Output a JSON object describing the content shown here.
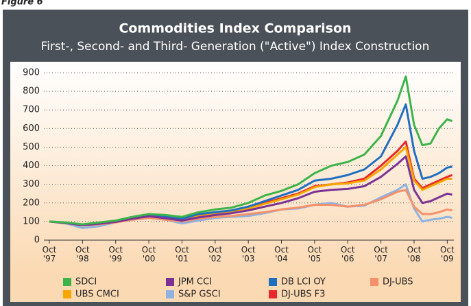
{
  "figure_label": "Figure 6",
  "chart_data": {
    "type": "line",
    "title": "Commodities Index Comparison",
    "subtitle": "First-, Second- and Third- Generation (\"Active\") Index Construction",
    "x": [
      1997.75,
      1998.25,
      1998.75,
      1999.25,
      1999.75,
      2000.25,
      2000.75,
      2001.25,
      2001.75,
      2002.25,
      2002.75,
      2003.25,
      2003.75,
      2004.25,
      2004.75,
      2005.25,
      2005.75,
      2006.25,
      2006.75,
      2007.25,
      2007.75,
      2008.25,
      2008.5,
      2008.75,
      2009.0,
      2009.25,
      2009.5,
      2009.75,
      2009.9
    ],
    "xlim": [
      1997.75,
      2009.95
    ],
    "xticks": [
      {
        "value": 1997.75,
        "label": "Oct '97"
      },
      {
        "value": 1998.75,
        "label": "Oct '98"
      },
      {
        "value": 1999.75,
        "label": "Oct '99"
      },
      {
        "value": 2000.75,
        "label": "Oct '00"
      },
      {
        "value": 2001.75,
        "label": "Oct '01"
      },
      {
        "value": 2002.75,
        "label": "Oct '02"
      },
      {
        "value": 2003.75,
        "label": "Oct '03"
      },
      {
        "value": 2004.75,
        "label": "Oct '04"
      },
      {
        "value": 2005.75,
        "label": "Oct '05"
      },
      {
        "value": 2006.75,
        "label": "Oct '06"
      },
      {
        "value": 2007.75,
        "label": "Oct '07"
      },
      {
        "value": 2008.75,
        "label": "Oct '08"
      },
      {
        "value": 2009.75,
        "label": "Oct '09"
      }
    ],
    "ylim": [
      0,
      900
    ],
    "yticks": [
      0,
      100,
      200,
      300,
      400,
      500,
      600,
      700,
      800,
      900
    ],
    "grid": true,
    "series": [
      {
        "name": "SDCI",
        "color": "#3cb44a",
        "values": [
          100,
          95,
          85,
          95,
          105,
          125,
          140,
          135,
          125,
          150,
          165,
          175,
          200,
          240,
          265,
          300,
          360,
          400,
          420,
          460,
          560,
          750,
          880,
          620,
          510,
          520,
          600,
          650,
          640
        ]
      },
      {
        "name": "JPM CCI",
        "color": "#7b3294",
        "values": [
          100,
          92,
          80,
          88,
          98,
          115,
          128,
          118,
          105,
          122,
          135,
          145,
          160,
          180,
          200,
          225,
          260,
          270,
          275,
          290,
          340,
          410,
          450,
          270,
          200,
          210,
          230,
          250,
          245
        ]
      },
      {
        "name": "DB LCI OY",
        "color": "#1f6fc1",
        "values": [
          100,
          93,
          82,
          92,
          102,
          120,
          135,
          125,
          115,
          140,
          150,
          160,
          180,
          210,
          240,
          270,
          320,
          330,
          350,
          380,
          450,
          620,
          730,
          480,
          330,
          340,
          360,
          390,
          395
        ]
      },
      {
        "name": "DJ-UBS",
        "color": "#f4916b",
        "values": [
          100,
          92,
          80,
          85,
          95,
          110,
          120,
          110,
          100,
          115,
          125,
          130,
          140,
          150,
          165,
          175,
          190,
          190,
          180,
          190,
          220,
          260,
          270,
          180,
          140,
          140,
          150,
          165,
          160
        ]
      },
      {
        "name": "UBS CMCI",
        "color": "#f7a600",
        "values": [
          100,
          93,
          82,
          90,
          100,
          118,
          132,
          120,
          110,
          128,
          142,
          152,
          170,
          195,
          220,
          245,
          285,
          300,
          305,
          320,
          380,
          460,
          500,
          320,
          270,
          290,
          310,
          330,
          330
        ]
      },
      {
        "name": "S&P GSCI",
        "color": "#8fb2e0",
        "values": [
          100,
          90,
          65,
          75,
          95,
          110,
          120,
          110,
          90,
          105,
          120,
          125,
          130,
          145,
          165,
          170,
          190,
          200,
          180,
          185,
          230,
          270,
          300,
          170,
          100,
          110,
          115,
          125,
          120
        ]
      },
      {
        "name": "DJ-UBS F3",
        "color": "#e8262b",
        "values": [
          100,
          93,
          82,
          90,
          100,
          118,
          132,
          120,
          110,
          130,
          145,
          155,
          175,
          200,
          225,
          250,
          290,
          300,
          310,
          330,
          400,
          480,
          530,
          330,
          280,
          300,
          320,
          340,
          350
        ]
      }
    ]
  }
}
